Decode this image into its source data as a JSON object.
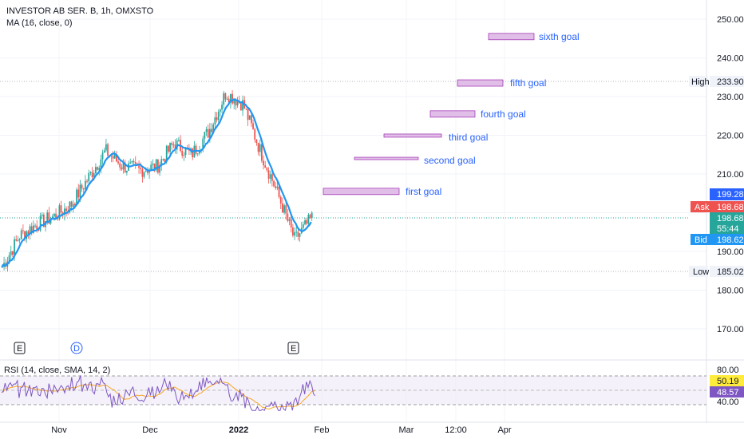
{
  "header": {
    "symbol_title": "INVESTOR AB SER. B, 1h, OMXSTO",
    "ma_label": "MA (16, close, 0)",
    "rsi_label": "RSI (14, close, SMA, 14, 2)"
  },
  "chart_data": {
    "type": "candlestick",
    "y_axis": {
      "ticks": [
        170,
        180,
        190,
        200,
        210,
        220,
        230,
        240,
        250
      ],
      "range": [
        166,
        253
      ]
    },
    "x_axis": {
      "ticks": [
        "Nov",
        "Dec",
        "2022",
        "Feb",
        "Mar",
        "12:00",
        "Apr"
      ]
    },
    "price_path": {
      "description": "approximate closing-price path over time",
      "points": [
        [
          "Oct start",
          186
        ],
        [
          "mid Oct",
          194
        ],
        [
          "late Oct",
          197
        ],
        [
          "Nov",
          199
        ],
        [
          "early Nov",
          202
        ],
        [
          "mid Nov",
          209
        ],
        [
          "late Nov",
          216
        ],
        [
          "late Nov b",
          212
        ],
        [
          "Dec",
          211
        ],
        [
          "early Dec",
          212
        ],
        [
          "mid Dec",
          218
        ],
        [
          "late Dec",
          215
        ],
        [
          "Dec end",
          221
        ],
        [
          "2022",
          231
        ],
        [
          "early Jan",
          228
        ],
        [
          "mid Jan",
          216
        ],
        [
          "late Jan",
          205
        ],
        [
          "low",
          193
        ],
        [
          "last",
          198.68
        ]
      ]
    },
    "levels": {
      "high_label": "High",
      "high_value": "233.90",
      "low_label": "Low",
      "low_value": "185.02",
      "last_price": "199.28",
      "ask_label": "Ask",
      "ask_value": "198.68",
      "price_value": "198.68",
      "countdown": "55:44",
      "bid_label": "Bid",
      "bid_value": "198.62"
    },
    "goals": [
      {
        "label": "first goal",
        "price": 205.5
      },
      {
        "label": "second goal",
        "price": 213.5
      },
      {
        "label": "third goal",
        "price": 219.5
      },
      {
        "label": "fourth goal",
        "price": 225.5
      },
      {
        "label": "fifth goal",
        "price": 233.5
      },
      {
        "label": "sixth goal",
        "price": 245.5
      }
    ],
    "rsi": {
      "ticks": [
        "80.00",
        "40.00"
      ],
      "rsi_value": "50.19",
      "sma_value": "48.57"
    },
    "event_markers": [
      "E",
      "D",
      "E"
    ]
  },
  "colors": {
    "up": "#26a69a",
    "down": "#ef5350",
    "ma": "#2196f3",
    "goal_fill": "#e1bee7",
    "goal_stroke": "#9c27b0",
    "rsi_line": "#7e57c2",
    "rsi_sma": "#f9a825"
  }
}
